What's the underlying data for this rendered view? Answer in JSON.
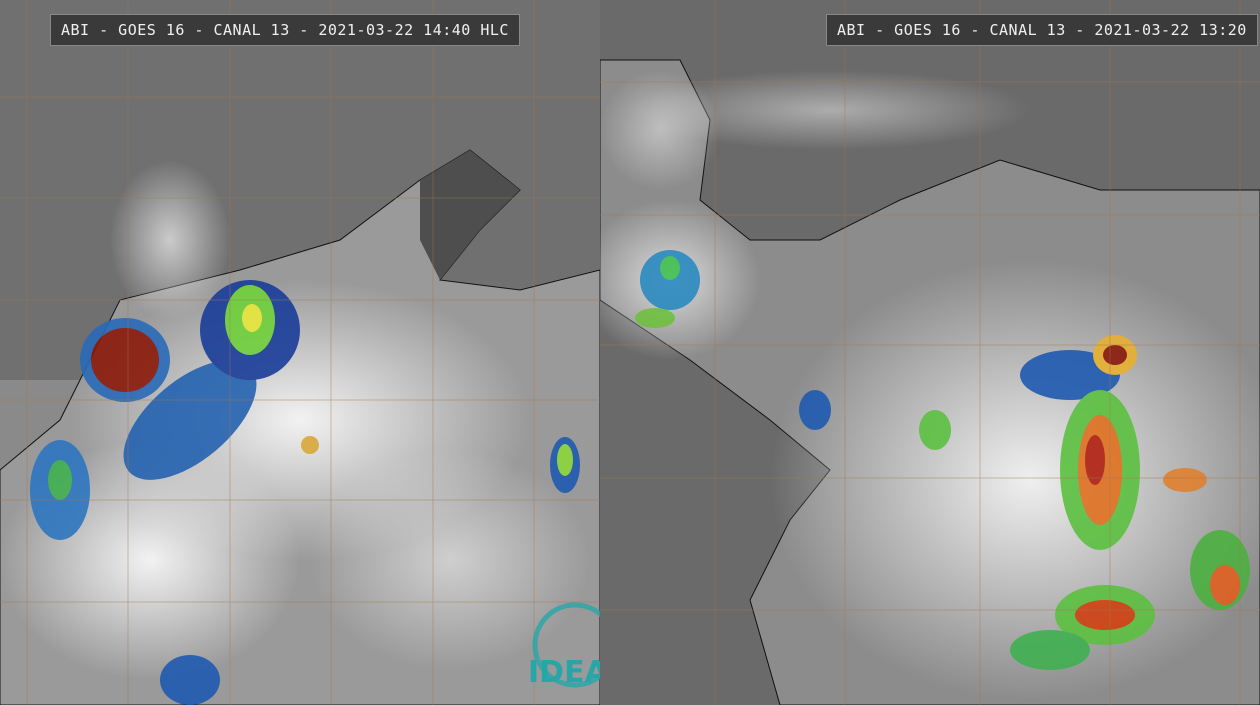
{
  "panels": [
    {
      "label": "ABI - GOES 16 - CANAL 13 - 2021-03-22 14:40 HLC"
    },
    {
      "label": "ABI - GOES 16 - CANAL 13 - 2021-03-22 13:20"
    }
  ],
  "logo": "IDEAM"
}
